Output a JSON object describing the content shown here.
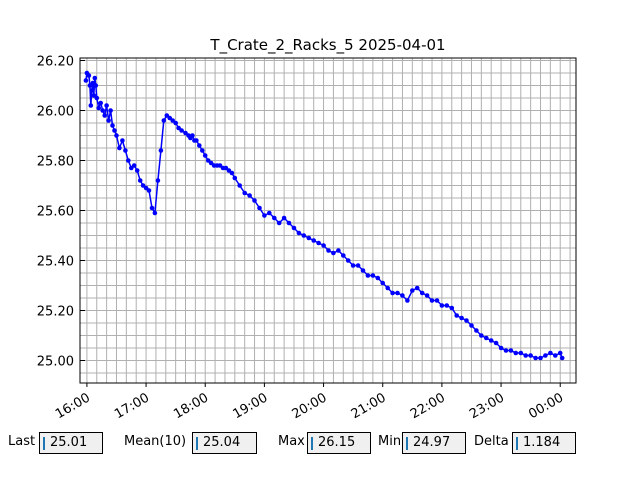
{
  "chart_data": {
    "type": "line",
    "title": "T_Crate_2_Racks_5 2025-04-01",
    "xlabel": "",
    "ylabel": "",
    "x_ticks": [
      "16:00",
      "17:00",
      "18:00",
      "19:00",
      "20:00",
      "21:00",
      "22:00",
      "23:00",
      "00:00"
    ],
    "y_ticks": [
      "25.00",
      "25.20",
      "25.40",
      "25.60",
      "25.80",
      "26.00",
      "26.20"
    ],
    "xlim": [
      "15:53",
      "00:16"
    ],
    "ylim": [
      24.91,
      26.21
    ],
    "grid": true,
    "color": "#0000ff",
    "series": [
      {
        "x": [
          "15:59",
          "16:00",
          "16:02",
          "16:03",
          "16:04",
          "16:05",
          "16:06",
          "16:07",
          "16:08",
          "16:09",
          "16:10",
          "16:12",
          "16:14",
          "16:16",
          "16:18",
          "16:20",
          "16:22",
          "16:24",
          "16:26",
          "16:28",
          "16:30",
          "16:33",
          "16:36",
          "16:39",
          "16:42",
          "16:45",
          "16:48",
          "16:51",
          "16:54",
          "16:57",
          "17:00",
          "17:03",
          "17:06",
          "17:09",
          "17:12",
          "17:15",
          "17:18",
          "17:21",
          "17:24",
          "17:27",
          "17:30",
          "17:33",
          "17:36",
          "17:40",
          "17:43",
          "17:45",
          "17:47",
          "17:49",
          "17:51",
          "17:54",
          "17:57",
          "18:00",
          "18:03",
          "18:06",
          "18:09",
          "18:12",
          "18:15",
          "18:18",
          "18:21",
          "18:24",
          "18:27",
          "18:30",
          "18:35",
          "18:40",
          "18:45",
          "18:50",
          "18:55",
          "19:00",
          "19:05",
          "19:10",
          "19:15",
          "19:20",
          "19:25",
          "19:30",
          "19:35",
          "19:40",
          "19:45",
          "19:50",
          "19:55",
          "20:00",
          "20:05",
          "20:10",
          "20:15",
          "20:20",
          "20:25",
          "20:30",
          "20:35",
          "20:40",
          "20:45",
          "20:50",
          "20:55",
          "21:00",
          "21:05",
          "21:10",
          "21:15",
          "21:20",
          "21:25",
          "21:30",
          "21:35",
          "21:40",
          "21:45",
          "21:50",
          "21:55",
          "22:00",
          "22:05",
          "22:10",
          "22:15",
          "22:20",
          "22:25",
          "22:30",
          "22:35",
          "22:40",
          "22:45",
          "22:50",
          "22:55",
          "23:00",
          "23:05",
          "23:10",
          "23:15",
          "23:20",
          "23:25",
          "23:30",
          "23:35",
          "23:40",
          "23:45",
          "23:50",
          "23:55",
          "00:00",
          "00:02"
        ],
        "y": [
          26.12,
          26.15,
          26.14,
          26.1,
          26.02,
          26.08,
          26.11,
          26.06,
          26.13,
          26.1,
          26.05,
          26.01,
          26.03,
          26.0,
          25.98,
          26.02,
          25.96,
          26.0,
          25.94,
          25.92,
          25.9,
          25.85,
          25.88,
          25.84,
          25.8,
          25.77,
          25.78,
          25.76,
          25.72,
          25.7,
          25.69,
          25.68,
          25.61,
          25.59,
          25.72,
          25.84,
          25.96,
          25.98,
          25.97,
          25.96,
          25.95,
          25.93,
          25.92,
          25.91,
          25.9,
          25.89,
          25.9,
          25.88,
          25.88,
          25.86,
          25.84,
          25.82,
          25.8,
          25.79,
          25.78,
          25.78,
          25.78,
          25.77,
          25.77,
          25.76,
          25.75,
          25.73,
          25.7,
          25.67,
          25.66,
          25.64,
          25.61,
          25.58,
          25.59,
          25.57,
          25.55,
          25.57,
          25.55,
          25.53,
          25.51,
          25.5,
          25.49,
          25.48,
          25.47,
          25.46,
          25.44,
          25.43,
          25.44,
          25.42,
          25.4,
          25.38,
          25.38,
          25.36,
          25.34,
          25.34,
          25.33,
          25.31,
          25.29,
          25.27,
          25.27,
          25.26,
          25.24,
          25.28,
          25.29,
          25.27,
          25.26,
          25.24,
          25.24,
          25.22,
          25.22,
          25.21,
          25.18,
          25.17,
          25.16,
          25.14,
          25.12,
          25.1,
          25.09,
          25.08,
          25.07,
          25.05,
          25.04,
          25.04,
          25.03,
          25.03,
          25.02,
          25.02,
          25.01,
          25.01,
          25.02,
          25.03,
          25.02,
          25.03,
          25.01
        ]
      }
    ]
  },
  "stats": {
    "last_label": "Last",
    "last_value": "25.01",
    "mean_label": "Mean(10)",
    "mean_value": "25.04",
    "max_label": "Max",
    "max_value": "26.15",
    "min_label": "Min",
    "min_value": "24.97",
    "delta_label": "Delta",
    "delta_value": "1.184"
  }
}
